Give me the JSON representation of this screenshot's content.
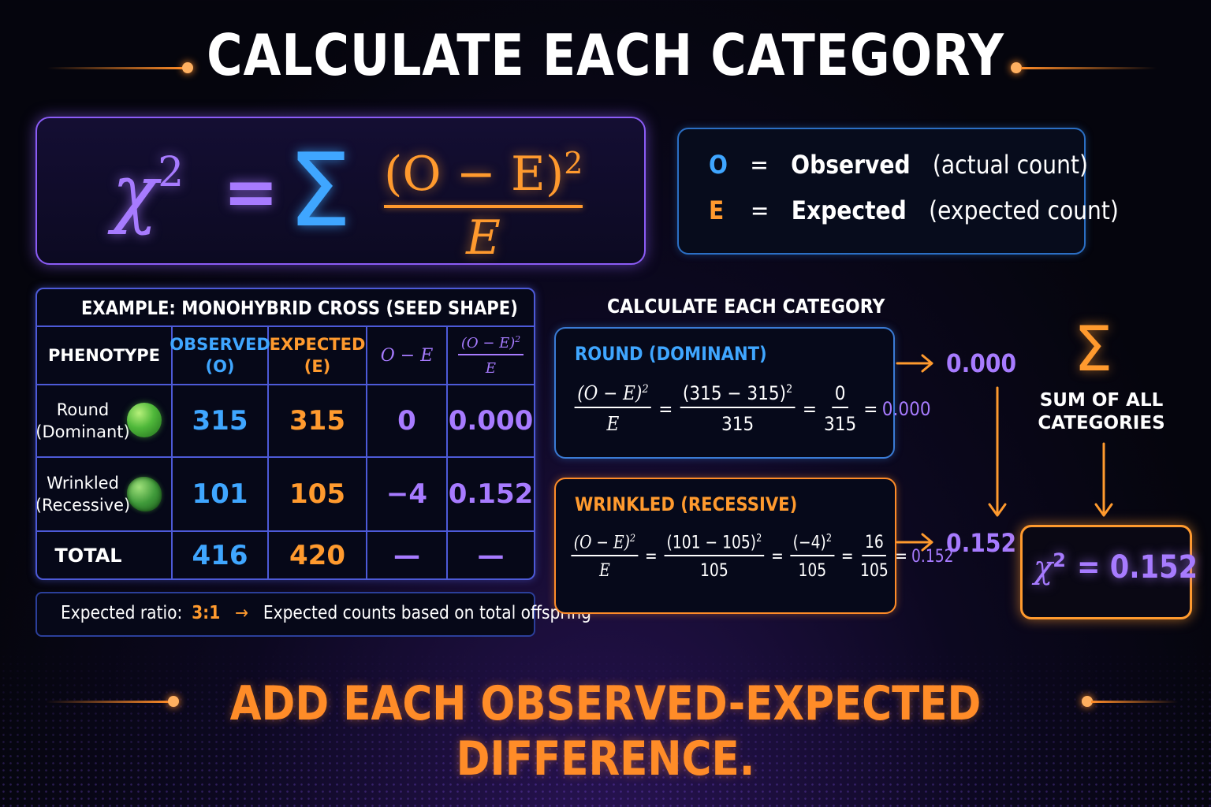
{
  "title": "CALCULATE EACH CATEGORY",
  "formula": {
    "chi": "χ",
    "power": "2",
    "equals": "=",
    "sigma": "Σ",
    "numerator": "(O − E)",
    "numerator_power": "2",
    "denominator": "E"
  },
  "legend": {
    "o_symbol": "O",
    "o_equals": "=",
    "o_name": "Observed",
    "o_desc": "(actual count)",
    "e_symbol": "E",
    "e_equals": "=",
    "e_name": "Expected",
    "e_desc": "(expected count)"
  },
  "table": {
    "caption": "EXAMPLE: MONOHYBRID CROSS (SEED SHAPE)",
    "headers": {
      "phenotype": "PHENOTYPE",
      "observed_1": "OBSERVED",
      "observed_2": "(O)",
      "expected_1": "EXPECTED",
      "expected_2": "(E)",
      "o_minus_e": "O − E",
      "ratio_num": "(O − E)",
      "ratio_pow": "2",
      "ratio_den": "E"
    },
    "rows": [
      {
        "label_1": "Round",
        "label_2": "(Dominant)",
        "observed": "315",
        "expected": "315",
        "diff": "0",
        "contrib": "0.000"
      },
      {
        "label_1": "Wrinkled",
        "label_2": "(Recessive)",
        "observed": "101",
        "expected": "105",
        "diff": "−4",
        "contrib": "0.152"
      }
    ],
    "total": {
      "label": "TOTAL",
      "observed": "416",
      "expected": "420",
      "diff": "—",
      "contrib": "—"
    }
  },
  "note": {
    "prefix": "Expected ratio:",
    "ratio": "3:1",
    "arrow": "→",
    "text": "Expected counts based on total offspring"
  },
  "calc_heading": "CALCULATE EACH CATEGORY",
  "round_card": {
    "title": "ROUND (DOMINANT)",
    "f_num": "(O − E)",
    "f_pow": "2",
    "f_den": "E",
    "eq1": "=",
    "s_num": "(315 − 315)",
    "s_pow": "2",
    "s_den": "315",
    "eq2": "=",
    "r_num": "0",
    "r_den": "315",
    "eq3": "=",
    "result": "0.000"
  },
  "wrinkled_card": {
    "title": "WRINKLED (RECESSIVE)",
    "f_num": "(O − E)",
    "f_pow": "2",
    "f_den": "E",
    "eq1": "=",
    "s_num": "(101 − 105)",
    "s_pow": "2",
    "s_den": "105",
    "eq2": "=",
    "m_num": "(−4)",
    "m_pow": "2",
    "m_den": "105",
    "eq3": "=",
    "r_num": "16",
    "r_den": "105",
    "eq4": "=",
    "result": "0.152"
  },
  "flow": {
    "round_value": "0.000",
    "wrinkled_value": "0.152",
    "sigma": "Σ",
    "sum_label_1": "SUM OF ALL",
    "sum_label_2": "CATEGORIES"
  },
  "result": {
    "chi": "χ",
    "power": "2",
    "text": "= 0.152"
  },
  "bottom_text": "ADD EACH OBSERVED-EXPECTED DIFFERENCE.",
  "colors": {
    "violet": "#a77bff",
    "blue": "#3fa6ff",
    "orange": "#ff9a2e",
    "background": "#05050d"
  }
}
